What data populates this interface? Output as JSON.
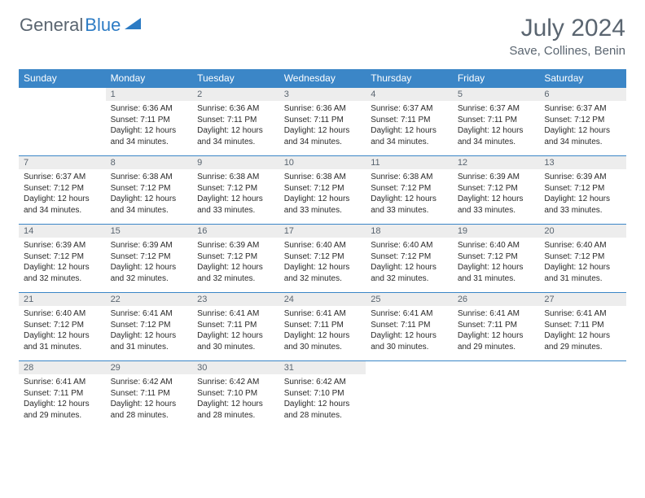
{
  "logo": {
    "part1": "General",
    "part2": "Blue"
  },
  "title": "July 2024",
  "location": "Save, Collines, Benin",
  "colors": {
    "header_bg": "#3b86c7",
    "header_fg": "#ffffff",
    "datebar_bg": "#ededed",
    "text_muted": "#5a6570",
    "text_body": "#2a2a2a",
    "rule": "#3b86c7"
  },
  "day_names": [
    "Sunday",
    "Monday",
    "Tuesday",
    "Wednesday",
    "Thursday",
    "Friday",
    "Saturday"
  ],
  "weeks": [
    [
      null,
      {
        "n": "1",
        "sr": "6:36 AM",
        "ss": "7:11 PM",
        "dl": "12 hours and 34 minutes."
      },
      {
        "n": "2",
        "sr": "6:36 AM",
        "ss": "7:11 PM",
        "dl": "12 hours and 34 minutes."
      },
      {
        "n": "3",
        "sr": "6:36 AM",
        "ss": "7:11 PM",
        "dl": "12 hours and 34 minutes."
      },
      {
        "n": "4",
        "sr": "6:37 AM",
        "ss": "7:11 PM",
        "dl": "12 hours and 34 minutes."
      },
      {
        "n": "5",
        "sr": "6:37 AM",
        "ss": "7:11 PM",
        "dl": "12 hours and 34 minutes."
      },
      {
        "n": "6",
        "sr": "6:37 AM",
        "ss": "7:12 PM",
        "dl": "12 hours and 34 minutes."
      }
    ],
    [
      {
        "n": "7",
        "sr": "6:37 AM",
        "ss": "7:12 PM",
        "dl": "12 hours and 34 minutes."
      },
      {
        "n": "8",
        "sr": "6:38 AM",
        "ss": "7:12 PM",
        "dl": "12 hours and 34 minutes."
      },
      {
        "n": "9",
        "sr": "6:38 AM",
        "ss": "7:12 PM",
        "dl": "12 hours and 33 minutes."
      },
      {
        "n": "10",
        "sr": "6:38 AM",
        "ss": "7:12 PM",
        "dl": "12 hours and 33 minutes."
      },
      {
        "n": "11",
        "sr": "6:38 AM",
        "ss": "7:12 PM",
        "dl": "12 hours and 33 minutes."
      },
      {
        "n": "12",
        "sr": "6:39 AM",
        "ss": "7:12 PM",
        "dl": "12 hours and 33 minutes."
      },
      {
        "n": "13",
        "sr": "6:39 AM",
        "ss": "7:12 PM",
        "dl": "12 hours and 33 minutes."
      }
    ],
    [
      {
        "n": "14",
        "sr": "6:39 AM",
        "ss": "7:12 PM",
        "dl": "12 hours and 32 minutes."
      },
      {
        "n": "15",
        "sr": "6:39 AM",
        "ss": "7:12 PM",
        "dl": "12 hours and 32 minutes."
      },
      {
        "n": "16",
        "sr": "6:39 AM",
        "ss": "7:12 PM",
        "dl": "12 hours and 32 minutes."
      },
      {
        "n": "17",
        "sr": "6:40 AM",
        "ss": "7:12 PM",
        "dl": "12 hours and 32 minutes."
      },
      {
        "n": "18",
        "sr": "6:40 AM",
        "ss": "7:12 PM",
        "dl": "12 hours and 32 minutes."
      },
      {
        "n": "19",
        "sr": "6:40 AM",
        "ss": "7:12 PM",
        "dl": "12 hours and 31 minutes."
      },
      {
        "n": "20",
        "sr": "6:40 AM",
        "ss": "7:12 PM",
        "dl": "12 hours and 31 minutes."
      }
    ],
    [
      {
        "n": "21",
        "sr": "6:40 AM",
        "ss": "7:12 PM",
        "dl": "12 hours and 31 minutes."
      },
      {
        "n": "22",
        "sr": "6:41 AM",
        "ss": "7:12 PM",
        "dl": "12 hours and 31 minutes."
      },
      {
        "n": "23",
        "sr": "6:41 AM",
        "ss": "7:11 PM",
        "dl": "12 hours and 30 minutes."
      },
      {
        "n": "24",
        "sr": "6:41 AM",
        "ss": "7:11 PM",
        "dl": "12 hours and 30 minutes."
      },
      {
        "n": "25",
        "sr": "6:41 AM",
        "ss": "7:11 PM",
        "dl": "12 hours and 30 minutes."
      },
      {
        "n": "26",
        "sr": "6:41 AM",
        "ss": "7:11 PM",
        "dl": "12 hours and 29 minutes."
      },
      {
        "n": "27",
        "sr": "6:41 AM",
        "ss": "7:11 PM",
        "dl": "12 hours and 29 minutes."
      }
    ],
    [
      {
        "n": "28",
        "sr": "6:41 AM",
        "ss": "7:11 PM",
        "dl": "12 hours and 29 minutes."
      },
      {
        "n": "29",
        "sr": "6:42 AM",
        "ss": "7:11 PM",
        "dl": "12 hours and 28 minutes."
      },
      {
        "n": "30",
        "sr": "6:42 AM",
        "ss": "7:10 PM",
        "dl": "12 hours and 28 minutes."
      },
      {
        "n": "31",
        "sr": "6:42 AM",
        "ss": "7:10 PM",
        "dl": "12 hours and 28 minutes."
      },
      null,
      null,
      null
    ]
  ],
  "labels": {
    "sunrise": "Sunrise:",
    "sunset": "Sunset:",
    "daylight": "Daylight:"
  }
}
